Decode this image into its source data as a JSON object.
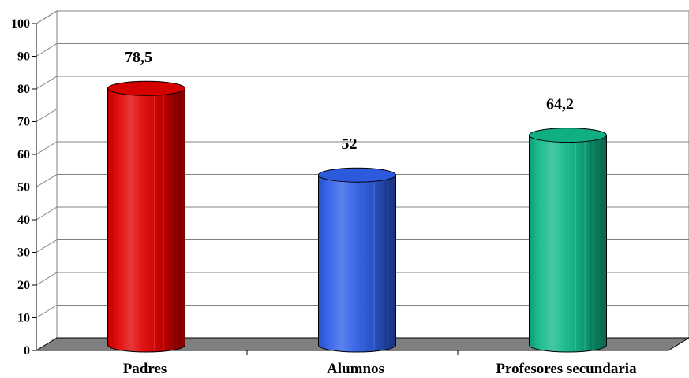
{
  "chart_data": {
    "type": "bar",
    "style": "3d-cylinder",
    "title": "",
    "xlabel": "",
    "ylabel": "",
    "categories": [
      "Padres",
      "Alumnos",
      "Profesores secundaria"
    ],
    "values": [
      78.5,
      52,
      64.2
    ],
    "data_labels": [
      "78,5",
      "52",
      "64,2"
    ],
    "ylim": [
      0,
      100
    ],
    "yticks": [
      0,
      10,
      20,
      30,
      40,
      50,
      60,
      70,
      80,
      90,
      100
    ],
    "grid": true,
    "legend": "none",
    "bar_colors": [
      "#e00000",
      "#2f5fe8",
      "#10b88a"
    ],
    "floor_color": "#7f7f7f"
  }
}
